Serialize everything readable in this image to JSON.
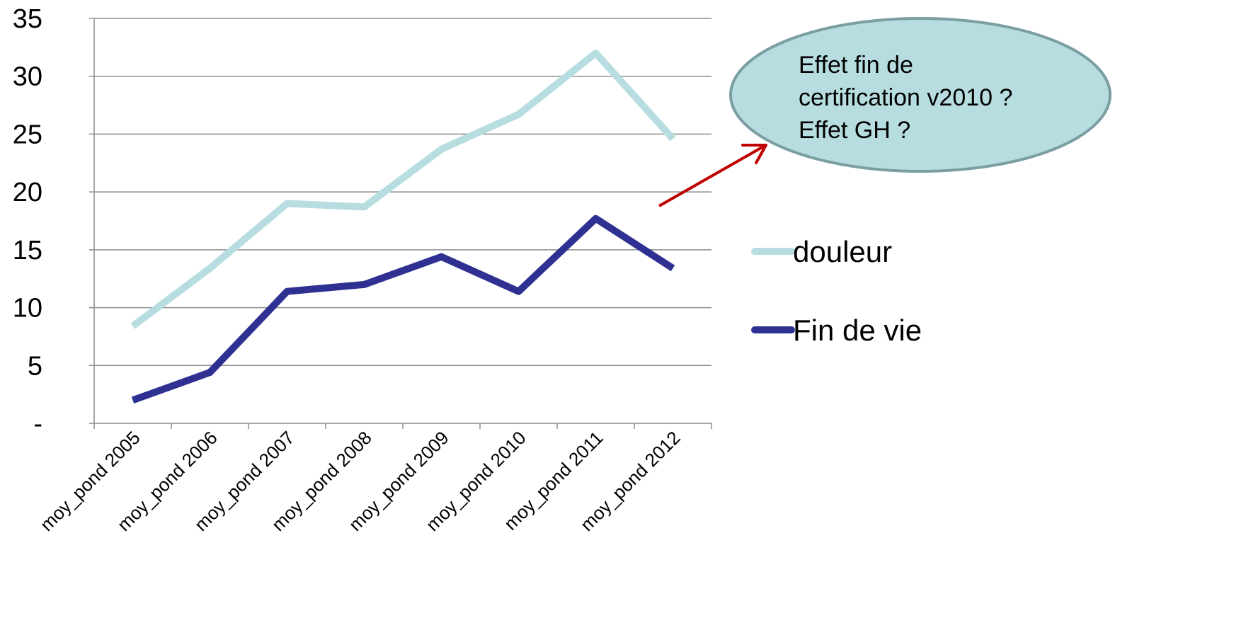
{
  "chart_data": {
    "type": "line",
    "categories": [
      "moy_pond 2005",
      "moy_pond 2006",
      "moy_pond 2007",
      "moy_pond 2008",
      "moy_pond 2009",
      "moy_pond 2010",
      "moy_pond 2011",
      "moy_pond 2012"
    ],
    "series": [
      {
        "name": "douleur",
        "color": "#b7dde0",
        "values": [
          8.4,
          13.4,
          19.0,
          18.7,
          23.7,
          26.7,
          32.0,
          24.6
        ]
      },
      {
        "name": "Fin de vie",
        "color": "#2e3192",
        "values": [
          2.0,
          4.4,
          11.4,
          12.0,
          14.4,
          11.4,
          17.7,
          13.4
        ]
      }
    ],
    "ylim": [
      0,
      35
    ],
    "yticks": [
      0,
      5,
      10,
      15,
      20,
      25,
      30,
      35
    ],
    "ytick_labels": [
      "-",
      "5",
      "10",
      "15",
      "20",
      "25",
      "30",
      "35"
    ],
    "grid": true,
    "legend": "right",
    "annotation": {
      "lines": [
        "Effet fin de",
        "certification v2010 ?",
        "Effet GH ?"
      ],
      "fill": "#b7dde0",
      "stroke": "#7a9ea2",
      "arrow_color": "#c00000"
    }
  }
}
